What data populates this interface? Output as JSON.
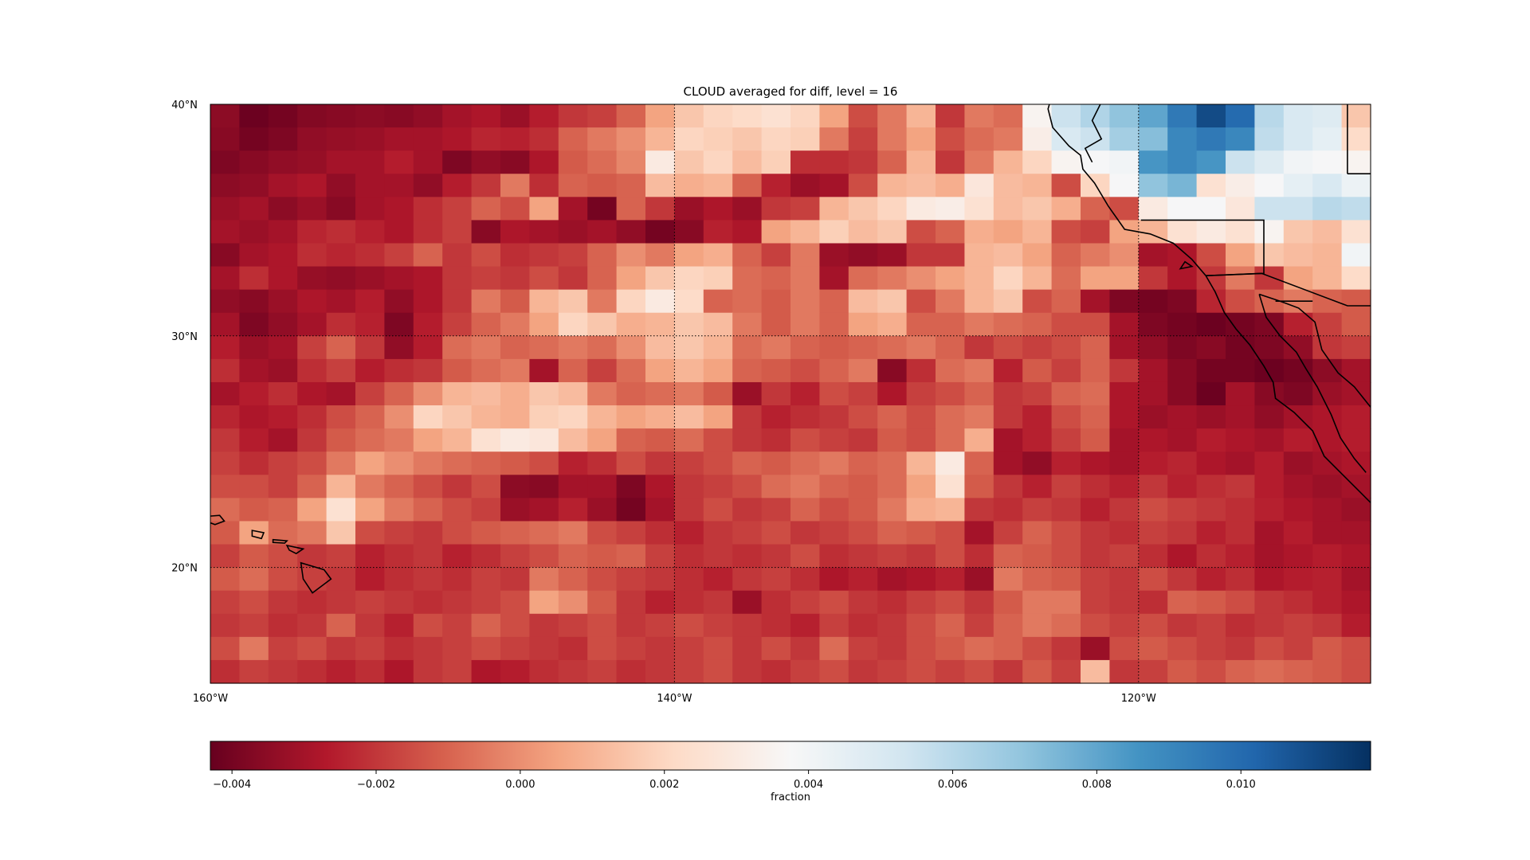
{
  "title": "CLOUD averaged for diff, level = 16",
  "colorbar": {
    "label": "fraction",
    "vmin": -0.0043,
    "vmax": 0.0118,
    "ticks": [
      "−0.004",
      "−0.002",
      "0.000",
      "0.002",
      "0.004",
      "0.006",
      "0.008",
      "0.010"
    ],
    "tick_values": [
      -0.004,
      -0.002,
      0.0,
      0.002,
      0.004,
      0.006,
      0.008,
      0.01
    ],
    "colormap": "RdBu_r"
  },
  "map": {
    "lon_range": [
      -160,
      -110
    ],
    "lat_range": [
      15,
      40
    ],
    "lon_tick_labels": [
      "160°W",
      "140°W",
      "120°W"
    ],
    "lon_tick_values": [
      -160,
      -140,
      -120
    ],
    "lat_tick_labels": [
      "40°N",
      "30°N",
      "20°N"
    ],
    "lat_tick_values": [
      40,
      30,
      20
    ],
    "gridlines": "dotted",
    "coastlines": true
  },
  "chart_data": {
    "type": "heatmap",
    "title": "CLOUD averaged for diff, level = 16",
    "xlabel": "",
    "ylabel": "",
    "colorbar_label": "fraction",
    "x_range": [
      -160,
      -110
    ],
    "y_range": [
      15,
      40
    ],
    "grid_shape": [
      25,
      40
    ],
    "note_values": "diff values in fraction units, rows from 40N (top) to 15N (bottom), 40 columns from 160W to 110W",
    "values": [
      [
        -0.0035,
        -0.0042,
        -0.004,
        -0.0037,
        -0.0036,
        -0.0035,
        -0.0036,
        -0.0034,
        -0.003,
        -0.0028,
        -0.0032,
        -0.0026,
        -0.002,
        -0.0018,
        -0.001,
        0.0005,
        0.0015,
        0.002,
        0.0022,
        0.0025,
        0.002,
        0.0005,
        -0.0015,
        -0.0005,
        0.001,
        -0.002,
        -0.0005,
        -0.0008,
        0.0035,
        0.0055,
        0.0062,
        0.007,
        0.008,
        0.0095,
        0.011,
        0.01,
        0.006,
        0.005,
        0.0048,
        0.0015
      ],
      [
        -0.0036,
        -0.004,
        -0.0038,
        -0.0034,
        -0.0033,
        -0.0032,
        -0.003,
        -0.003,
        -0.0028,
        -0.0024,
        -0.0025,
        -0.0022,
        -0.001,
        -0.0005,
        0.0,
        0.001,
        0.002,
        0.0018,
        0.0015,
        0.002,
        0.0018,
        -0.0005,
        -0.0018,
        -0.0005,
        0.0005,
        -0.0015,
        -0.0008,
        -0.0005,
        0.0032,
        0.005,
        0.0055,
        0.0065,
        0.0072,
        0.009,
        0.0095,
        0.009,
        0.0058,
        0.005,
        0.0045,
        0.0022
      ],
      [
        -0.0038,
        -0.0036,
        -0.0034,
        -0.0033,
        -0.003,
        -0.003,
        -0.0026,
        -0.003,
        -0.0038,
        -0.0034,
        -0.0036,
        -0.0028,
        -0.0012,
        -0.0008,
        -0.0002,
        0.003,
        0.0015,
        0.002,
        0.0012,
        0.0018,
        -0.0022,
        -0.0022,
        -0.002,
        -0.001,
        0.001,
        -0.002,
        -0.0005,
        0.001,
        0.002,
        0.0035,
        0.0038,
        0.004,
        0.0085,
        0.009,
        0.0085,
        0.0055,
        0.0048,
        0.004,
        0.0038,
        0.0035
      ],
      [
        -0.0035,
        -0.0034,
        -0.003,
        -0.0028,
        -0.0034,
        -0.003,
        -0.003,
        -0.0034,
        -0.0026,
        -0.002,
        -0.0005,
        -0.0022,
        -0.001,
        -0.0012,
        -0.001,
        0.0012,
        0.0008,
        0.001,
        -0.001,
        -0.0025,
        -0.0032,
        -0.003,
        -0.0015,
        0.001,
        0.0012,
        0.0008,
        0.0028,
        0.0012,
        0.001,
        -0.0015,
        0.002,
        0.0038,
        0.007,
        0.0075,
        0.0025,
        0.0032,
        0.0038,
        0.0045,
        0.005,
        0.0042
      ],
      [
        -0.0032,
        -0.003,
        -0.0035,
        -0.0032,
        -0.0036,
        -0.003,
        -0.0028,
        -0.0022,
        -0.0018,
        -0.001,
        -0.0015,
        0.0005,
        -0.003,
        -0.004,
        -0.001,
        -0.002,
        -0.0032,
        -0.0028,
        -0.0032,
        -0.002,
        -0.0018,
        0.001,
        0.0015,
        0.002,
        0.003,
        0.0032,
        0.0025,
        0.0012,
        0.0015,
        0.0008,
        -0.001,
        -0.0015,
        0.003,
        0.0038,
        0.0038,
        0.0028,
        0.0055,
        0.0055,
        0.006,
        0.0058
      ],
      [
        -0.003,
        -0.0032,
        -0.003,
        -0.0024,
        -0.0022,
        -0.0025,
        -0.0028,
        -0.0022,
        -0.0018,
        -0.0036,
        -0.0028,
        -0.003,
        -0.0032,
        -0.003,
        -0.0034,
        -0.004,
        -0.0036,
        -0.0025,
        -0.0028,
        0.0005,
        0.001,
        0.0018,
        0.0012,
        0.0015,
        -0.0015,
        -0.001,
        0.0008,
        0.0005,
        0.001,
        -0.0015,
        -0.0018,
        0.0005,
        0.001,
        0.0025,
        0.003,
        0.0025,
        0.0035,
        0.0015,
        0.0012,
        0.0025
      ],
      [
        -0.0036,
        -0.003,
        -0.0028,
        -0.0022,
        -0.0024,
        -0.0022,
        -0.0018,
        -0.001,
        -0.002,
        -0.0015,
        -0.0022,
        -0.002,
        -0.0018,
        -0.001,
        0.0,
        -0.0005,
        0.0005,
        0.0008,
        -0.001,
        -0.0018,
        -0.0005,
        -0.0032,
        -0.0034,
        -0.0032,
        -0.002,
        -0.002,
        0.001,
        0.0012,
        0.0005,
        -0.001,
        -0.0005,
        0.0,
        -0.003,
        -0.0028,
        -0.0015,
        0.0005,
        0.0015,
        0.0012,
        0.001,
        0.004
      ],
      [
        -0.003,
        -0.0022,
        -0.0028,
        -0.0033,
        -0.0034,
        -0.0032,
        -0.003,
        -0.0028,
        -0.002,
        -0.0018,
        -0.002,
        -0.0015,
        -0.002,
        -0.001,
        0.0005,
        0.0015,
        0.002,
        0.0018,
        -0.0008,
        -0.001,
        -0.0005,
        -0.003,
        -0.0008,
        -0.0005,
        0.0,
        0.0005,
        0.001,
        0.002,
        0.001,
        -0.0008,
        0.0005,
        0.0005,
        -0.002,
        -0.0028,
        -0.002,
        -0.0005,
        -0.002,
        0.0005,
        0.001,
        0.0022
      ],
      [
        -0.0034,
        -0.0036,
        -0.0032,
        -0.0028,
        -0.003,
        -0.0026,
        -0.0034,
        -0.0028,
        -0.002,
        -0.0005,
        -0.0012,
        0.001,
        0.0015,
        -0.0005,
        0.002,
        0.003,
        0.0022,
        -0.001,
        -0.0008,
        -0.0012,
        -0.0005,
        -0.001,
        0.0012,
        0.0015,
        -0.0015,
        -0.0005,
        0.001,
        0.0015,
        -0.0015,
        -0.001,
        -0.003,
        -0.0038,
        -0.004,
        -0.0038,
        -0.0024,
        -0.0015,
        -0.001,
        -0.0005,
        -0.001,
        -0.0012
      ],
      [
        -0.003,
        -0.0038,
        -0.0034,
        -0.003,
        -0.0022,
        -0.0025,
        -0.0038,
        -0.0026,
        -0.0018,
        -0.001,
        -0.0005,
        0.0005,
        0.002,
        0.0015,
        0.0008,
        0.001,
        0.0015,
        0.0012,
        -0.0005,
        -0.0012,
        -0.0005,
        -0.001,
        0.0005,
        0.0008,
        -0.001,
        -0.001,
        -0.0005,
        -0.0008,
        -0.001,
        -0.0015,
        -0.0015,
        -0.003,
        -0.0038,
        -0.004,
        -0.0042,
        -0.004,
        -0.0038,
        -0.0025,
        -0.0018,
        -0.0012
      ],
      [
        -0.0026,
        -0.0032,
        -0.003,
        -0.0018,
        -0.001,
        -0.002,
        -0.0034,
        -0.0026,
        -0.0008,
        -0.0005,
        -0.001,
        -0.0008,
        -0.0005,
        -0.0008,
        0.0,
        0.0012,
        0.0015,
        0.001,
        -0.0008,
        -0.0005,
        -0.001,
        -0.0012,
        -0.001,
        -0.0008,
        -0.0005,
        -0.001,
        -0.002,
        -0.0015,
        -0.0018,
        -0.0015,
        -0.001,
        -0.003,
        -0.0034,
        -0.0038,
        -0.0036,
        -0.004,
        -0.0038,
        -0.0034,
        -0.002,
        -0.0018
      ],
      [
        -0.0022,
        -0.003,
        -0.0032,
        -0.0022,
        -0.0018,
        -0.0026,
        -0.0022,
        -0.002,
        -0.0012,
        -0.0008,
        -0.0005,
        -0.003,
        -0.001,
        -0.0018,
        -0.0008,
        0.0005,
        0.001,
        0.0005,
        -0.001,
        -0.0012,
        -0.0015,
        -0.001,
        -0.0005,
        -0.0036,
        -0.0022,
        -0.0008,
        -0.0005,
        -0.0025,
        -0.0012,
        -0.0018,
        -0.001,
        -0.002,
        -0.003,
        -0.0036,
        -0.004,
        -0.004,
        -0.0042,
        -0.004,
        -0.0035,
        -0.003
      ],
      [
        -0.003,
        -0.0026,
        -0.0022,
        -0.0028,
        -0.003,
        -0.0018,
        -0.001,
        0.0,
        0.001,
        0.0012,
        0.0008,
        0.0015,
        0.0012,
        -0.0005,
        -0.001,
        -0.0008,
        -0.0005,
        -0.0012,
        -0.0032,
        -0.002,
        -0.0025,
        -0.0015,
        -0.0018,
        -0.0028,
        -0.0018,
        -0.0015,
        -0.001,
        -0.002,
        -0.0018,
        -0.001,
        -0.0008,
        -0.0028,
        -0.003,
        -0.0036,
        -0.0042,
        -0.003,
        -0.0036,
        -0.0038,
        -0.0032,
        -0.003
      ],
      [
        -0.0024,
        -0.0028,
        -0.0026,
        -0.0022,
        -0.0015,
        -0.001,
        0.0,
        0.002,
        0.0015,
        0.001,
        0.0008,
        0.0018,
        0.002,
        0.001,
        0.0005,
        0.0008,
        0.0012,
        0.0005,
        -0.002,
        -0.0025,
        -0.0022,
        -0.002,
        -0.0015,
        -0.001,
        -0.0015,
        -0.0008,
        -0.0005,
        -0.002,
        -0.0025,
        -0.0015,
        -0.001,
        -0.0028,
        -0.0032,
        -0.003,
        -0.0032,
        -0.003,
        -0.0034,
        -0.003,
        -0.0028,
        -0.0026
      ],
      [
        -0.002,
        -0.0026,
        -0.003,
        -0.002,
        -0.0012,
        -0.0008,
        -0.0005,
        0.0005,
        0.001,
        0.0025,
        0.003,
        0.0028,
        0.0012,
        0.0005,
        -0.001,
        -0.0012,
        -0.0008,
        -0.0015,
        -0.002,
        -0.0022,
        -0.0015,
        -0.0018,
        -0.002,
        -0.0012,
        -0.0015,
        -0.0008,
        0.0008,
        -0.003,
        -0.0025,
        -0.0018,
        -0.0012,
        -0.003,
        -0.0028,
        -0.003,
        -0.0026,
        -0.0028,
        -0.003,
        -0.0026,
        -0.0028,
        -0.0026
      ],
      [
        -0.0018,
        -0.0022,
        -0.0018,
        -0.0015,
        -0.0005,
        0.0005,
        0.0,
        -0.0005,
        -0.0008,
        -0.001,
        -0.0012,
        -0.0015,
        -0.0025,
        -0.0022,
        -0.0015,
        -0.002,
        -0.0018,
        -0.0015,
        -0.001,
        -0.0012,
        -0.0008,
        -0.0005,
        -0.001,
        -0.0008,
        0.001,
        0.003,
        -0.001,
        -0.003,
        -0.0034,
        -0.0025,
        -0.0028,
        -0.003,
        -0.0026,
        -0.0024,
        -0.0028,
        -0.003,
        -0.0026,
        -0.0032,
        -0.003,
        -0.0028
      ],
      [
        -0.0015,
        -0.0015,
        -0.0018,
        -0.001,
        0.001,
        -0.0005,
        -0.001,
        -0.0015,
        -0.002,
        -0.0015,
        -0.0035,
        -0.0036,
        -0.003,
        -0.003,
        -0.0038,
        -0.0028,
        -0.002,
        -0.0018,
        -0.0015,
        -0.0008,
        -0.0005,
        -0.001,
        -0.0012,
        -0.0008,
        0.0005,
        0.0025,
        -0.0012,
        -0.002,
        -0.0025,
        -0.0018,
        -0.0022,
        -0.0025,
        -0.002,
        -0.0025,
        -0.0022,
        -0.002,
        -0.0026,
        -0.003,
        -0.0032,
        -0.003
      ],
      [
        -0.0008,
        -0.0012,
        -0.001,
        0.0005,
        0.0025,
        0.0005,
        -0.0005,
        -0.001,
        -0.0015,
        -0.0018,
        -0.0032,
        -0.003,
        -0.0025,
        -0.0032,
        -0.004,
        -0.003,
        -0.002,
        -0.0015,
        -0.002,
        -0.0018,
        -0.001,
        -0.0015,
        -0.0012,
        -0.0005,
        0.0008,
        0.001,
        -0.002,
        -0.0022,
        -0.0018,
        -0.002,
        -0.0025,
        -0.002,
        -0.0015,
        -0.0018,
        -0.002,
        -0.0022,
        -0.0025,
        -0.0028,
        -0.003,
        -0.0032
      ],
      [
        -0.0012,
        0.0005,
        -0.0008,
        -0.0005,
        0.0015,
        -0.0015,
        -0.0018,
        -0.002,
        -0.0015,
        -0.0012,
        -0.001,
        -0.0008,
        -0.0005,
        -0.0015,
        -0.0018,
        -0.0022,
        -0.0025,
        -0.002,
        -0.0018,
        -0.0015,
        -0.002,
        -0.0018,
        -0.0015,
        -0.001,
        -0.0012,
        -0.0015,
        -0.003,
        -0.0018,
        -0.001,
        -0.0015,
        -0.002,
        -0.0022,
        -0.0018,
        -0.002,
        -0.0025,
        -0.0022,
        -0.003,
        -0.0026,
        -0.003,
        -0.003
      ],
      [
        -0.0018,
        -0.0012,
        -0.0015,
        -0.002,
        -0.0018,
        -0.0025,
        -0.0022,
        -0.002,
        -0.0025,
        -0.0022,
        -0.0018,
        -0.0015,
        -0.001,
        -0.0012,
        -0.001,
        -0.0018,
        -0.0022,
        -0.002,
        -0.0022,
        -0.002,
        -0.0015,
        -0.0022,
        -0.002,
        -0.0018,
        -0.002,
        -0.0015,
        -0.0022,
        -0.001,
        -0.0012,
        -0.0015,
        -0.002,
        -0.0018,
        -0.0022,
        -0.0028,
        -0.0022,
        -0.0025,
        -0.003,
        -0.0028,
        -0.0026,
        -0.0028
      ],
      [
        -0.0012,
        -0.0008,
        -0.0015,
        -0.0018,
        -0.002,
        -0.0026,
        -0.0022,
        -0.002,
        -0.0022,
        -0.0018,
        -0.002,
        -0.0005,
        -0.001,
        -0.0015,
        -0.0018,
        -0.002,
        -0.0022,
        -0.0025,
        -0.002,
        -0.0018,
        -0.0022,
        -0.0028,
        -0.0025,
        -0.003,
        -0.0028,
        -0.0025,
        -0.0032,
        -0.0005,
        -0.001,
        -0.0012,
        -0.0018,
        -0.002,
        -0.0015,
        -0.002,
        -0.0025,
        -0.0022,
        -0.0028,
        -0.0026,
        -0.0025,
        -0.003
      ],
      [
        -0.0018,
        -0.0015,
        -0.002,
        -0.0022,
        -0.002,
        -0.0018,
        -0.002,
        -0.0022,
        -0.002,
        -0.0018,
        -0.0015,
        0.0005,
        0.0,
        -0.0012,
        -0.002,
        -0.0025,
        -0.0022,
        -0.002,
        -0.0032,
        -0.0022,
        -0.0018,
        -0.0015,
        -0.002,
        -0.0022,
        -0.0018,
        -0.0015,
        -0.002,
        -0.0012,
        -0.0005,
        -0.0005,
        -0.0018,
        -0.002,
        -0.0022,
        -0.001,
        -0.0012,
        -0.0015,
        -0.002,
        -0.0022,
        -0.0025,
        -0.0028
      ],
      [
        -0.002,
        -0.0018,
        -0.0022,
        -0.002,
        -0.001,
        -0.002,
        -0.0025,
        -0.0015,
        -0.0018,
        -0.001,
        -0.0015,
        -0.002,
        -0.0018,
        -0.0015,
        -0.002,
        -0.0018,
        -0.0015,
        -0.0018,
        -0.002,
        -0.0022,
        -0.0025,
        -0.0018,
        -0.0022,
        -0.002,
        -0.0015,
        -0.001,
        -0.0018,
        -0.001,
        -0.0005,
        -0.0008,
        -0.0015,
        -0.0018,
        -0.0015,
        -0.002,
        -0.0018,
        -0.0022,
        -0.002,
        -0.0018,
        -0.002,
        -0.0026
      ],
      [
        -0.0015,
        -0.0005,
        -0.0018,
        -0.0015,
        -0.002,
        -0.0018,
        -0.0022,
        -0.002,
        -0.0018,
        -0.0015,
        -0.0018,
        -0.002,
        -0.0022,
        -0.0015,
        -0.0018,
        -0.002,
        -0.0018,
        -0.0015,
        -0.002,
        -0.0015,
        -0.002,
        -0.0008,
        -0.0018,
        -0.002,
        -0.0015,
        -0.0012,
        -0.0008,
        -0.001,
        -0.0015,
        -0.002,
        -0.0032,
        -0.0015,
        -0.0012,
        -0.0015,
        -0.0018,
        -0.002,
        -0.0015,
        -0.0018,
        -0.0012,
        -0.0015
      ],
      [
        -0.0022,
        -0.0018,
        -0.002,
        -0.0022,
        -0.0025,
        -0.0022,
        -0.0028,
        -0.002,
        -0.0018,
        -0.0028,
        -0.0026,
        -0.0022,
        -0.002,
        -0.0018,
        -0.0022,
        -0.002,
        -0.0018,
        -0.0015,
        -0.002,
        -0.0022,
        -0.0018,
        -0.0015,
        -0.002,
        -0.0018,
        -0.0015,
        -0.0018,
        -0.0015,
        -0.002,
        -0.0012,
        -0.0018,
        0.0012,
        -0.002,
        -0.0018,
        -0.0012,
        -0.0015,
        -0.001,
        -0.0008,
        -0.001,
        -0.0012,
        -0.0015
      ]
    ]
  }
}
